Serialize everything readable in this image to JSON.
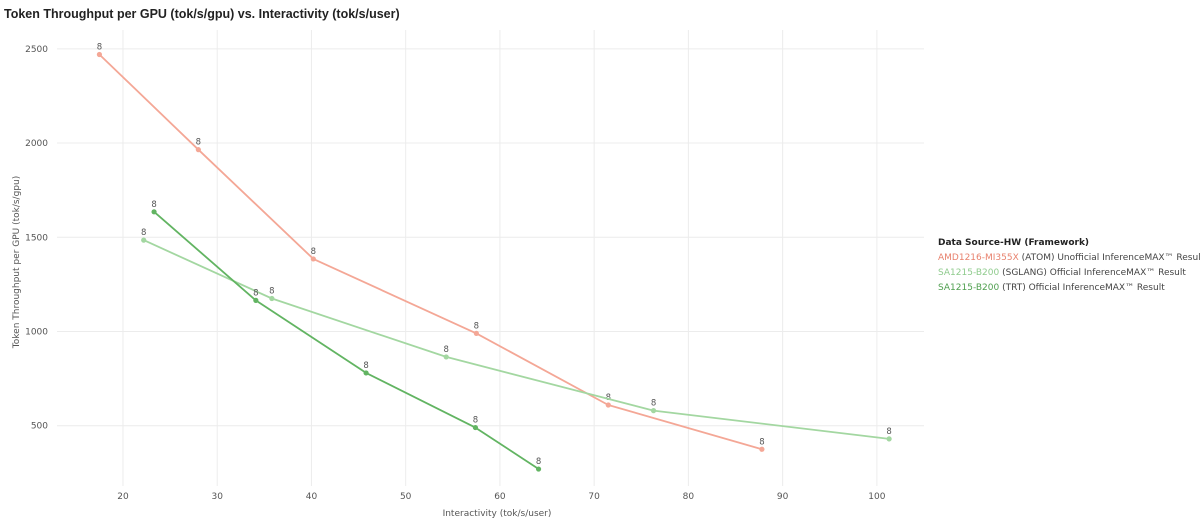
{
  "chart_data": {
    "type": "line",
    "title": "Token Throughput per GPU (tok/s/gpu) vs. Interactivity (tok/s/user)",
    "xlabel": "Interactivity (tok/s/user)",
    "ylabel": "Token Throughput per GPU (tok/s/gpu)",
    "xlim": [
      13,
      105
    ],
    "ylim": [
      180,
      2600
    ],
    "x_ticks": [
      20,
      30,
      40,
      50,
      60,
      70,
      80,
      90,
      100
    ],
    "y_ticks": [
      500,
      1000,
      1500,
      2000,
      2500
    ],
    "grid": true,
    "legend": {
      "title": "Data Source-HW (Framework)",
      "placement": "right"
    },
    "series": [
      {
        "name": "AMD1216-MI355X",
        "suffix": " (ATOM) Unofficial InferenceMAX™ Result",
        "color": "#f4a796",
        "x": [
          17.5,
          28,
          40.2,
          57.5,
          71.5,
          87.8
        ],
        "y": [
          2470,
          1965,
          1385,
          990,
          610,
          375
        ],
        "labels": [
          "8",
          "8",
          "8",
          "8",
          "8",
          "8"
        ]
      },
      {
        "name": "SA1215-B200",
        "suffix": " (SGLANG) Official InferenceMAX™ Result",
        "color": "#a3d7a1",
        "x": [
          22.2,
          35.8,
          54.3,
          76.3,
          101.3
        ],
        "y": [
          1485,
          1175,
          865,
          580,
          430
        ],
        "labels": [
          "8",
          "8",
          "8",
          "8",
          "8"
        ]
      },
      {
        "name": "SA1215-B200",
        "suffix": " (TRT) Official InferenceMAX™ Result",
        "color": "#62b462",
        "x": [
          23.3,
          34.1,
          45.8,
          57.4,
          64.1
        ],
        "y": [
          1635,
          1165,
          780,
          490,
          270
        ],
        "labels": [
          "8",
          "8",
          "8",
          "8",
          "8"
        ]
      }
    ]
  }
}
